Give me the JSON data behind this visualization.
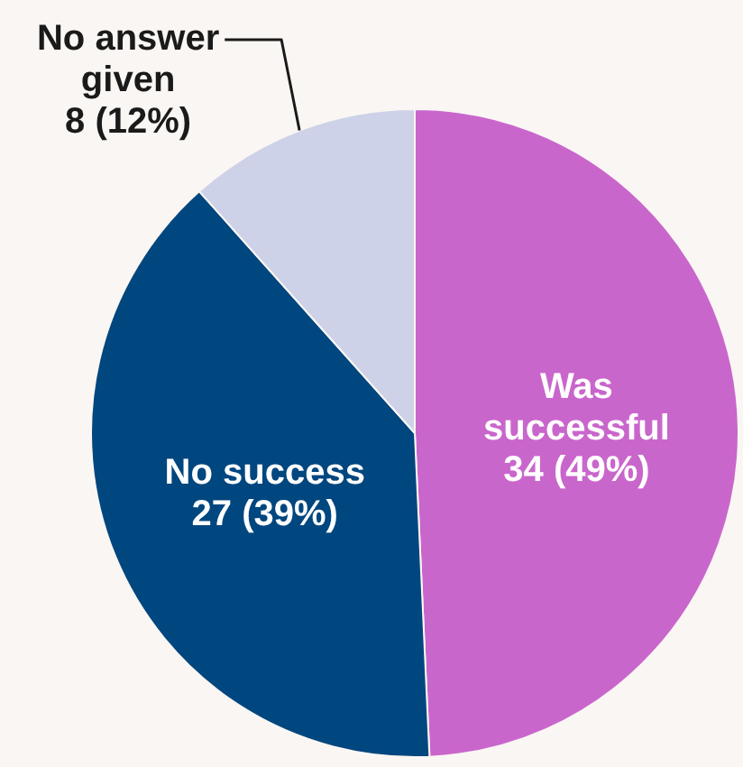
{
  "chart_data": {
    "type": "pie",
    "categories": [
      "Was successful",
      "No success",
      "No answer given"
    ],
    "values": [
      34,
      27,
      8
    ],
    "value_labels": [
      "34 (49%)",
      "27 (39%)",
      "8 (12%)"
    ],
    "colors": [
      "#c966cc",
      "#00467f",
      "#cdd2e8"
    ],
    "legend": false
  }
}
